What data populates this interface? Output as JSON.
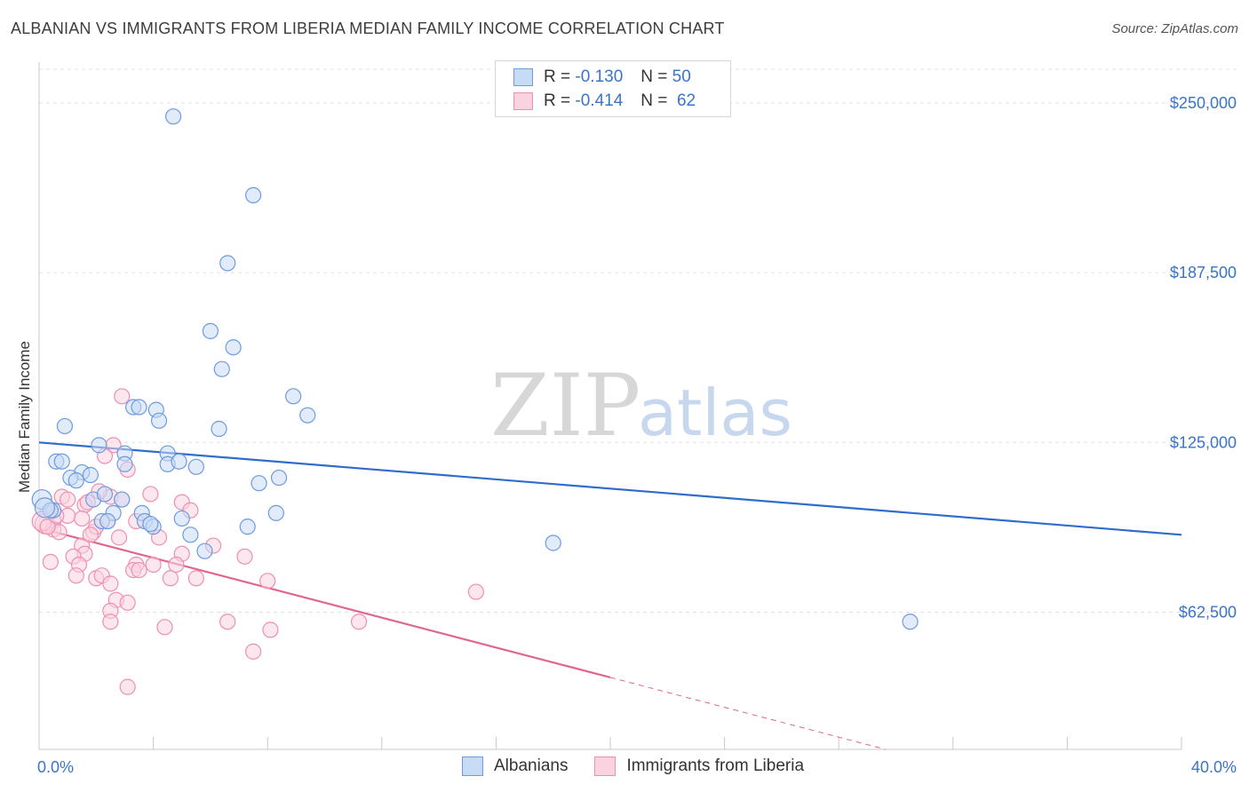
{
  "title": "ALBANIAN VS IMMIGRANTS FROM LIBERIA MEDIAN FAMILY INCOME CORRELATION CHART",
  "source": "Source: ZipAtlas.com",
  "watermark": {
    "zip": "ZIP",
    "atlas": "atlas"
  },
  "legend": {
    "albanians": {
      "r_label": "R =",
      "r_value": "-0.130",
      "n_label": "N =",
      "n_value": "50"
    },
    "liberia": {
      "r_label": "R =",
      "r_value": "-0.414",
      "n_label": "N =",
      "n_value": "62"
    }
  },
  "bottom_legend": {
    "albanians": "Albanians",
    "liberia": "Immigrants from Liberia"
  },
  "chart_data": {
    "type": "scatter",
    "title": "ALBANIAN VS IMMIGRANTS FROM LIBERIA MEDIAN FAMILY INCOME CORRELATION CHART",
    "xlabel": "",
    "ylabel": "Median Family Income",
    "xlim": [
      0,
      40
    ],
    "ylim": [
      12000,
      265000
    ],
    "x_tick_labels": [
      {
        "x": 0,
        "label": "0.0%"
      },
      {
        "x": 40,
        "label": "40.0%"
      }
    ],
    "y_ticks": [
      {
        "y": 62500,
        "label": "$62,500"
      },
      {
        "y": 125000,
        "label": "$125,000"
      },
      {
        "y": 187500,
        "label": "$187,500"
      },
      {
        "y": 250000,
        "label": "$250,000"
      }
    ],
    "colors": {
      "albanians": "#6d9be0",
      "albanians_fill": "#c8dbf5",
      "albanians_line": "#2f6ccc",
      "liberia": "#ee8fb0",
      "liberia_fill": "#fbd3e0",
      "liberia_line": "#e0668f"
    },
    "series": [
      {
        "name": "Albanians",
        "points": [
          [
            4.7,
            245000
          ],
          [
            7.5,
            216000
          ],
          [
            6.6,
            191000
          ],
          [
            6.0,
            166000
          ],
          [
            6.8,
            160000
          ],
          [
            6.4,
            152000
          ],
          [
            8.9,
            142000
          ],
          [
            9.4,
            135000
          ],
          [
            3.3,
            138000
          ],
          [
            3.5,
            138000
          ],
          [
            4.1,
            137000
          ],
          [
            4.2,
            133000
          ],
          [
            6.3,
            130000
          ],
          [
            0.9,
            131000
          ],
          [
            2.1,
            124000
          ],
          [
            3.0,
            121000
          ],
          [
            4.5,
            121000
          ],
          [
            0.6,
            118000
          ],
          [
            0.8,
            118000
          ],
          [
            4.5,
            117000
          ],
          [
            4.9,
            118000
          ],
          [
            3.0,
            117000
          ],
          [
            5.5,
            116000
          ],
          [
            1.5,
            114000
          ],
          [
            1.8,
            113000
          ],
          [
            1.1,
            112000
          ],
          [
            1.3,
            111000
          ],
          [
            8.4,
            112000
          ],
          [
            7.7,
            110000
          ],
          [
            0.1,
            104000
          ],
          [
            0.5,
            100000
          ],
          [
            2.9,
            104000
          ],
          [
            1.9,
            104000
          ],
          [
            2.3,
            106000
          ],
          [
            2.6,
            99000
          ],
          [
            0.4,
            100000
          ],
          [
            3.6,
            99000
          ],
          [
            8.3,
            99000
          ],
          [
            2.2,
            96000
          ],
          [
            2.4,
            96000
          ],
          [
            3.7,
            96000
          ],
          [
            5.0,
            97000
          ],
          [
            4.0,
            94000
          ],
          [
            7.3,
            94000
          ],
          [
            5.3,
            91000
          ],
          [
            5.8,
            85000
          ],
          [
            18.0,
            88000
          ],
          [
            30.5,
            59000
          ],
          [
            0.2,
            101000
          ],
          [
            3.9,
            95000
          ]
        ],
        "trend": {
          "x0": 0,
          "y0": 125000,
          "x1": 40,
          "y1": 91000
        }
      },
      {
        "name": "Immigrants from Liberia",
        "points": [
          [
            2.9,
            142000
          ],
          [
            2.6,
            124000
          ],
          [
            2.3,
            120000
          ],
          [
            3.1,
            115000
          ],
          [
            0.8,
            105000
          ],
          [
            1.0,
            104000
          ],
          [
            1.6,
            102000
          ],
          [
            2.5,
            105000
          ],
          [
            2.9,
            104000
          ],
          [
            3.9,
            106000
          ],
          [
            5.0,
            103000
          ],
          [
            5.3,
            100000
          ],
          [
            0.3,
            99000
          ],
          [
            0.5,
            96000
          ],
          [
            1.0,
            98000
          ],
          [
            1.5,
            97000
          ],
          [
            2.4,
            96000
          ],
          [
            0.2,
            95000
          ],
          [
            0.5,
            93000
          ],
          [
            0.7,
            92000
          ],
          [
            1.9,
            92000
          ],
          [
            2.0,
            94000
          ],
          [
            2.8,
            90000
          ],
          [
            4.2,
            90000
          ],
          [
            6.1,
            87000
          ],
          [
            1.5,
            87000
          ],
          [
            1.6,
            84000
          ],
          [
            5.0,
            84000
          ],
          [
            7.2,
            83000
          ],
          [
            1.2,
            83000
          ],
          [
            0.4,
            81000
          ],
          [
            1.4,
            80000
          ],
          [
            3.4,
            80000
          ],
          [
            4.0,
            80000
          ],
          [
            3.3,
            78000
          ],
          [
            3.5,
            78000
          ],
          [
            1.3,
            76000
          ],
          [
            2.0,
            75000
          ],
          [
            2.2,
            76000
          ],
          [
            4.6,
            75000
          ],
          [
            5.5,
            75000
          ],
          [
            8.0,
            74000
          ],
          [
            2.5,
            73000
          ],
          [
            2.7,
            67000
          ],
          [
            3.1,
            66000
          ],
          [
            15.3,
            70000
          ],
          [
            2.5,
            63000
          ],
          [
            2.5,
            59000
          ],
          [
            6.6,
            59000
          ],
          [
            11.2,
            59000
          ],
          [
            4.4,
            57000
          ],
          [
            8.1,
            56000
          ],
          [
            7.5,
            48000
          ],
          [
            3.1,
            35000
          ],
          [
            0.1,
            96000
          ],
          [
            0.3,
            94000
          ],
          [
            0.6,
            98000
          ],
          [
            1.7,
            103000
          ],
          [
            2.1,
            107000
          ],
          [
            3.4,
            96000
          ],
          [
            4.8,
            80000
          ],
          [
            1.8,
            91000
          ]
        ],
        "trend": {
          "x0": 0,
          "y0": 93500,
          "x1": 20,
          "y1": 38500
        },
        "trend_dashed": {
          "x0": 20,
          "y0": 38500,
          "x1": 40,
          "y1": -16500
        }
      }
    ]
  }
}
